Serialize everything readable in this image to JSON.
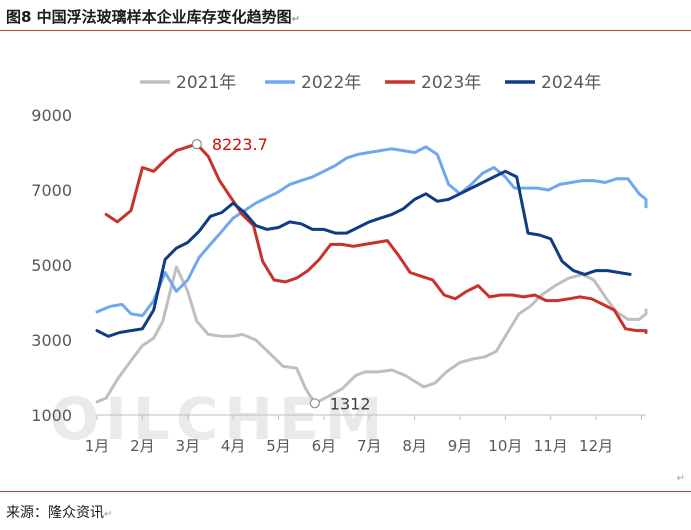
{
  "figure": {
    "title": "图8  中国浮法玻璃样本企业库存变化趋势图",
    "source": "来源：隆众资讯",
    "watermark": "OILCHEM"
  },
  "colors": {
    "2021": "#bfbfbf",
    "2022": "#6fa8ef",
    "2023": "#c8322b",
    "2024": "#0f3d82",
    "rule": "#a94a3b",
    "text": "#595959",
    "annotation_red": "#c0140c"
  },
  "chart_data": {
    "type": "line",
    "title": "",
    "xlabel": "",
    "ylabel": "",
    "ylim": [
      1000,
      9000
    ],
    "yticks": [
      1000,
      3000,
      5000,
      7000,
      9000
    ],
    "xlim": [
      1,
      13.1
    ],
    "months": [
      "1月",
      "2月",
      "3月",
      "4月",
      "5月",
      "6月",
      "7月",
      "8月",
      "9月",
      "10月",
      "11月",
      "12月"
    ],
    "grid": false,
    "legend_position": "top",
    "series": [
      {
        "name": "2021年",
        "color": "#bfbfbf",
        "points": [
          [
            1.0,
            1350
          ],
          [
            1.2,
            1450
          ],
          [
            1.45,
            1950
          ],
          [
            1.75,
            2450
          ],
          [
            2.0,
            2850
          ],
          [
            2.25,
            3050
          ],
          [
            2.45,
            3500
          ],
          [
            2.75,
            4950
          ],
          [
            3.0,
            4300
          ],
          [
            3.2,
            3500
          ],
          [
            3.45,
            3150
          ],
          [
            3.75,
            3100
          ],
          [
            4.0,
            3100
          ],
          [
            4.2,
            3150
          ],
          [
            4.5,
            3000
          ],
          [
            4.8,
            2650
          ],
          [
            5.1,
            2300
          ],
          [
            5.4,
            2250
          ],
          [
            5.6,
            1700
          ],
          [
            5.8,
            1312
          ],
          [
            6.1,
            1500
          ],
          [
            6.4,
            1700
          ],
          [
            6.7,
            2050
          ],
          [
            6.9,
            2150
          ],
          [
            7.2,
            2150
          ],
          [
            7.5,
            2200
          ],
          [
            7.8,
            2050
          ],
          [
            8.2,
            1750
          ],
          [
            8.45,
            1850
          ],
          [
            8.7,
            2150
          ],
          [
            9.0,
            2400
          ],
          [
            9.3,
            2500
          ],
          [
            9.55,
            2550
          ],
          [
            9.8,
            2700
          ],
          [
            10.05,
            3200
          ],
          [
            10.3,
            3700
          ],
          [
            10.55,
            3900
          ],
          [
            10.8,
            4200
          ],
          [
            11.1,
            4450
          ],
          [
            11.4,
            4650
          ],
          [
            11.7,
            4750
          ],
          [
            11.95,
            4600
          ],
          [
            12.2,
            4150
          ],
          [
            12.45,
            3750
          ],
          [
            12.7,
            3550
          ],
          [
            12.95,
            3550
          ],
          [
            13.2,
            3700
          ],
          [
            13.4,
            3800
          ]
        ]
      },
      {
        "name": "2022年",
        "color": "#6fa8ef",
        "points": [
          [
            1.0,
            3750
          ],
          [
            1.3,
            3900
          ],
          [
            1.55,
            3950
          ],
          [
            1.75,
            3700
          ],
          [
            2.0,
            3650
          ],
          [
            2.25,
            4050
          ],
          [
            2.5,
            4800
          ],
          [
            2.75,
            4300
          ],
          [
            3.0,
            4600
          ],
          [
            3.25,
            5200
          ],
          [
            3.5,
            5550
          ],
          [
            3.75,
            5900
          ],
          [
            4.0,
            6250
          ],
          [
            4.25,
            6450
          ],
          [
            4.5,
            6650
          ],
          [
            4.75,
            6800
          ],
          [
            5.0,
            6950
          ],
          [
            5.25,
            7150
          ],
          [
            5.5,
            7250
          ],
          [
            5.75,
            7350
          ],
          [
            6.0,
            7500
          ],
          [
            6.25,
            7650
          ],
          [
            6.5,
            7850
          ],
          [
            6.75,
            7950
          ],
          [
            7.0,
            8000
          ],
          [
            7.25,
            8050
          ],
          [
            7.5,
            8100
          ],
          [
            7.75,
            8050
          ],
          [
            8.0,
            8000
          ],
          [
            8.25,
            8150
          ],
          [
            8.5,
            7950
          ],
          [
            8.75,
            7150
          ],
          [
            9.0,
            6900
          ],
          [
            9.25,
            7150
          ],
          [
            9.5,
            7450
          ],
          [
            9.75,
            7600
          ],
          [
            10.0,
            7350
          ],
          [
            10.2,
            7050
          ],
          [
            10.45,
            7050
          ],
          [
            10.7,
            7050
          ],
          [
            10.95,
            7000
          ],
          [
            11.2,
            7150
          ],
          [
            11.45,
            7200
          ],
          [
            11.7,
            7250
          ],
          [
            11.95,
            7250
          ],
          [
            12.2,
            7200
          ],
          [
            12.45,
            7300
          ],
          [
            12.7,
            7300
          ],
          [
            12.95,
            6900
          ],
          [
            13.2,
            6750
          ],
          [
            13.4,
            6550
          ]
        ]
      },
      {
        "name": "2023年",
        "color": "#c8322b",
        "points": [
          [
            1.2,
            6350
          ],
          [
            1.45,
            6150
          ],
          [
            1.75,
            6450
          ],
          [
            2.0,
            7600
          ],
          [
            2.25,
            7500
          ],
          [
            2.5,
            7800
          ],
          [
            2.75,
            8050
          ],
          [
            3.0,
            8150
          ],
          [
            3.2,
            8223.7
          ],
          [
            3.45,
            7900
          ],
          [
            3.7,
            7250
          ],
          [
            3.95,
            6800
          ],
          [
            4.2,
            6350
          ],
          [
            4.45,
            6050
          ],
          [
            4.65,
            5100
          ],
          [
            4.9,
            4600
          ],
          [
            5.15,
            4550
          ],
          [
            5.4,
            4650
          ],
          [
            5.65,
            4850
          ],
          [
            5.9,
            5150
          ],
          [
            6.15,
            5550
          ],
          [
            6.4,
            5550
          ],
          [
            6.65,
            5500
          ],
          [
            6.9,
            5550
          ],
          [
            7.15,
            5600
          ],
          [
            7.4,
            5650
          ],
          [
            7.65,
            5250
          ],
          [
            7.9,
            4800
          ],
          [
            8.15,
            4700
          ],
          [
            8.4,
            4600
          ],
          [
            8.65,
            4200
          ],
          [
            8.9,
            4100
          ],
          [
            9.15,
            4300
          ],
          [
            9.4,
            4450
          ],
          [
            9.65,
            4150
          ],
          [
            9.9,
            4200
          ],
          [
            10.15,
            4200
          ],
          [
            10.4,
            4150
          ],
          [
            10.65,
            4200
          ],
          [
            10.9,
            4050
          ],
          [
            11.15,
            4050
          ],
          [
            11.4,
            4100
          ],
          [
            11.65,
            4150
          ],
          [
            11.9,
            4100
          ],
          [
            12.15,
            3950
          ],
          [
            12.4,
            3800
          ],
          [
            12.65,
            3300
          ],
          [
            12.9,
            3250
          ],
          [
            13.15,
            3250
          ],
          [
            13.4,
            3200
          ]
        ]
      },
      {
        "name": "2024年",
        "color": "#0f3d82",
        "points": [
          [
            1.0,
            3250
          ],
          [
            1.25,
            3100
          ],
          [
            1.5,
            3200
          ],
          [
            1.75,
            3250
          ],
          [
            2.0,
            3300
          ],
          [
            2.25,
            3800
          ],
          [
            2.5,
            5150
          ],
          [
            2.75,
            5450
          ],
          [
            3.0,
            5600
          ],
          [
            3.25,
            5900
          ],
          [
            3.5,
            6300
          ],
          [
            3.75,
            6400
          ],
          [
            4.0,
            6650
          ],
          [
            4.25,
            6400
          ],
          [
            4.5,
            6050
          ],
          [
            4.75,
            5950
          ],
          [
            5.0,
            6000
          ],
          [
            5.25,
            6150
          ],
          [
            5.5,
            6100
          ],
          [
            5.75,
            5950
          ],
          [
            6.0,
            5950
          ],
          [
            6.25,
            5850
          ],
          [
            6.5,
            5850
          ],
          [
            6.75,
            6000
          ],
          [
            7.0,
            6150
          ],
          [
            7.25,
            6250
          ],
          [
            7.5,
            6350
          ],
          [
            7.75,
            6500
          ],
          [
            8.0,
            6750
          ],
          [
            8.25,
            6900
          ],
          [
            8.5,
            6700
          ],
          [
            8.75,
            6750
          ],
          [
            9.0,
            6900
          ],
          [
            9.25,
            7050
          ],
          [
            9.5,
            7200
          ],
          [
            9.75,
            7350
          ],
          [
            10.0,
            7500
          ],
          [
            10.25,
            7350
          ],
          [
            10.5,
            5850
          ],
          [
            10.75,
            5800
          ],
          [
            11.0,
            5700
          ],
          [
            11.25,
            5100
          ],
          [
            11.5,
            4850
          ],
          [
            11.75,
            4750
          ],
          [
            12.0,
            4850
          ],
          [
            12.25,
            4850
          ],
          [
            12.5,
            4800
          ],
          [
            12.75,
            4750
          ]
        ]
      }
    ],
    "annotations": [
      {
        "text": "8223.7",
        "x": 3.2,
        "y": 8223.7,
        "color": "#c0140c"
      },
      {
        "text": "1312",
        "x": 5.8,
        "y": 1312,
        "color": "#404040"
      }
    ]
  }
}
